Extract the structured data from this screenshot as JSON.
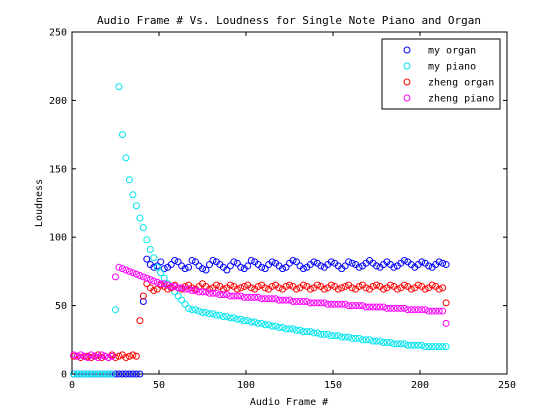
{
  "chart_data": {
    "type": "scatter",
    "title": "Audio Frame # Vs. Loudness for Single Note Piano and Organ",
    "xlabel": "Audio Frame #",
    "ylabel": "Loudness",
    "xlim": [
      0,
      250
    ],
    "ylim": [
      0,
      250
    ],
    "xticks": [
      "0",
      "50",
      "100",
      "150",
      "200",
      "250"
    ],
    "yticks": [
      "0",
      "50",
      "100",
      "150",
      "200",
      "250"
    ],
    "grid": false,
    "legend_position": "top-right",
    "series": [
      {
        "name": "my organ",
        "color": "#0000ff",
        "x": [
          1,
          3,
          5,
          7,
          9,
          11,
          13,
          15,
          17,
          19,
          21,
          23,
          25,
          27,
          29,
          31,
          33,
          35,
          37,
          39,
          41,
          43,
          45,
          47,
          49,
          51,
          53,
          55,
          57,
          59,
          61,
          63,
          65,
          67,
          69,
          71,
          73,
          75,
          77,
          79,
          81,
          83,
          85,
          87,
          89,
          91,
          93,
          95,
          97,
          99,
          101,
          103,
          105,
          107,
          109,
          111,
          113,
          115,
          117,
          119,
          121,
          123,
          125,
          127,
          129,
          131,
          133,
          135,
          137,
          139,
          141,
          143,
          145,
          147,
          149,
          151,
          153,
          155,
          157,
          159,
          161,
          163,
          165,
          167,
          169,
          171,
          173,
          175,
          177,
          179,
          181,
          183,
          185,
          187,
          189,
          191,
          193,
          195,
          197,
          199,
          201,
          203,
          205,
          207,
          209,
          211,
          213,
          215
        ],
        "y": [
          0,
          0,
          0,
          0,
          0,
          0,
          0,
          0,
          0,
          0,
          0,
          0,
          0,
          0,
          0,
          0,
          0,
          0,
          0,
          0,
          53,
          84,
          80,
          78,
          79,
          82,
          77,
          78,
          80,
          83,
          82,
          79,
          77,
          78,
          83,
          82,
          79,
          77,
          76,
          80,
          83,
          82,
          80,
          78,
          76,
          79,
          82,
          81,
          78,
          77,
          79,
          83,
          82,
          80,
          78,
          77,
          80,
          82,
          81,
          79,
          77,
          78,
          81,
          83,
          82,
          79,
          77,
          78,
          80,
          82,
          81,
          79,
          78,
          80,
          82,
          81,
          79,
          77,
          79,
          82,
          81,
          80,
          78,
          79,
          81,
          83,
          81,
          79,
          78,
          80,
          82,
          80,
          78,
          79,
          81,
          83,
          82,
          80,
          78,
          80,
          82,
          81,
          79,
          78,
          80,
          82,
          81,
          80
        ]
      },
      {
        "name": "my piano",
        "color": "#00e5ee",
        "x": [
          1,
          3,
          5,
          7,
          9,
          11,
          13,
          15,
          17,
          19,
          21,
          23,
          25,
          27,
          29,
          31,
          33,
          35,
          37,
          39,
          41,
          43,
          45,
          47,
          49,
          51,
          53,
          55,
          57,
          59,
          61,
          63,
          65,
          67,
          69,
          71,
          73,
          75,
          77,
          79,
          81,
          83,
          85,
          87,
          89,
          91,
          93,
          95,
          97,
          99,
          101,
          103,
          105,
          107,
          109,
          111,
          113,
          115,
          117,
          119,
          121,
          123,
          125,
          127,
          129,
          131,
          133,
          135,
          137,
          139,
          141,
          143,
          145,
          147,
          149,
          151,
          153,
          155,
          157,
          159,
          161,
          163,
          165,
          167,
          169,
          171,
          173,
          175,
          177,
          179,
          181,
          183,
          185,
          187,
          189,
          191,
          193,
          195,
          197,
          199,
          201,
          203,
          205,
          207,
          209,
          211,
          213,
          215
        ],
        "y": [
          0,
          0,
          0,
          0,
          0,
          0,
          0,
          0,
          0,
          0,
          0,
          0,
          47,
          210,
          175,
          158,
          142,
          131,
          123,
          114,
          107,
          98,
          91,
          85,
          78,
          74,
          70,
          66,
          63,
          60,
          57,
          54,
          51,
          48,
          47,
          47,
          46,
          45,
          45,
          44,
          44,
          43,
          43,
          42,
          42,
          41,
          41,
          40,
          40,
          39,
          39,
          38,
          38,
          37,
          37,
          36,
          36,
          35,
          35,
          34,
          34,
          33,
          33,
          33,
          32,
          32,
          31,
          31,
          31,
          30,
          30,
          29,
          29,
          29,
          28,
          28,
          28,
          27,
          27,
          27,
          26,
          26,
          26,
          25,
          25,
          25,
          24,
          24,
          24,
          23,
          23,
          23,
          22,
          22,
          22,
          22,
          21,
          21,
          21,
          21,
          21,
          20,
          20,
          20,
          20,
          20,
          20,
          20
        ]
      },
      {
        "name": "zheng organ",
        "color": "#ff0000",
        "x": [
          1,
          3,
          5,
          7,
          9,
          11,
          13,
          15,
          17,
          19,
          21,
          23,
          25,
          27,
          29,
          31,
          33,
          35,
          37,
          39,
          41,
          43,
          45,
          47,
          49,
          51,
          53,
          55,
          57,
          59,
          61,
          63,
          65,
          67,
          69,
          71,
          73,
          75,
          77,
          79,
          81,
          83,
          85,
          87,
          89,
          91,
          93,
          95,
          97,
          99,
          101,
          103,
          105,
          107,
          109,
          111,
          113,
          115,
          117,
          119,
          121,
          123,
          125,
          127,
          129,
          131,
          133,
          135,
          137,
          139,
          141,
          143,
          145,
          147,
          149,
          151,
          153,
          155,
          157,
          159,
          161,
          163,
          165,
          167,
          169,
          171,
          173,
          175,
          177,
          179,
          181,
          183,
          185,
          187,
          189,
          191,
          193,
          195,
          197,
          199,
          201,
          203,
          205,
          207,
          209,
          211,
          213,
          215
        ],
        "y": [
          13,
          13,
          12,
          13,
          13,
          12,
          13,
          14,
          12,
          13,
          12,
          14,
          12,
          13,
          14,
          12,
          13,
          14,
          13,
          39,
          57,
          66,
          63,
          61,
          62,
          65,
          64,
          62,
          63,
          65,
          63,
          62,
          64,
          65,
          63,
          62,
          64,
          66,
          64,
          62,
          63,
          65,
          64,
          62,
          63,
          65,
          64,
          62,
          63,
          64,
          65,
          63,
          62,
          64,
          65,
          63,
          62,
          64,
          65,
          63,
          62,
          64,
          65,
          64,
          62,
          63,
          65,
          64,
          62,
          63,
          65,
          64,
          62,
          63,
          65,
          64,
          62,
          63,
          64,
          65,
          63,
          62,
          64,
          65,
          63,
          62,
          64,
          65,
          64,
          62,
          63,
          65,
          64,
          62,
          63,
          65,
          64,
          62,
          63,
          65,
          64,
          62,
          63,
          65,
          64,
          62,
          63,
          52
        ]
      },
      {
        "name": "zheng piano",
        "color": "#ff00ff",
        "x": [
          1,
          3,
          5,
          7,
          9,
          11,
          13,
          15,
          17,
          19,
          21,
          23,
          25,
          27,
          29,
          31,
          33,
          35,
          37,
          39,
          41,
          43,
          45,
          47,
          49,
          51,
          53,
          55,
          57,
          59,
          61,
          63,
          65,
          67,
          69,
          71,
          73,
          75,
          77,
          79,
          81,
          83,
          85,
          87,
          89,
          91,
          93,
          95,
          97,
          99,
          101,
          103,
          105,
          107,
          109,
          111,
          113,
          115,
          117,
          119,
          121,
          123,
          125,
          127,
          129,
          131,
          133,
          135,
          137,
          139,
          141,
          143,
          145,
          147,
          149,
          151,
          153,
          155,
          157,
          159,
          161,
          163,
          165,
          167,
          169,
          171,
          173,
          175,
          177,
          179,
          181,
          183,
          185,
          187,
          189,
          191,
          193,
          195,
          197,
          199,
          201,
          203,
          205,
          207,
          209,
          211,
          213,
          215
        ],
        "y": [
          14,
          13,
          14,
          13,
          12,
          14,
          13,
          12,
          14,
          13,
          12,
          13,
          71,
          78,
          77,
          76,
          75,
          74,
          73,
          72,
          71,
          70,
          69,
          68,
          67,
          66,
          66,
          65,
          64,
          64,
          63,
          63,
          62,
          62,
          61,
          61,
          60,
          60,
          60,
          59,
          59,
          59,
          58,
          58,
          58,
          57,
          57,
          57,
          57,
          56,
          56,
          56,
          56,
          56,
          55,
          55,
          55,
          55,
          55,
          54,
          54,
          54,
          54,
          53,
          53,
          53,
          53,
          53,
          52,
          52,
          52,
          52,
          52,
          51,
          51,
          51,
          51,
          51,
          51,
          50,
          50,
          50,
          50,
          50,
          49,
          49,
          49,
          49,
          49,
          49,
          48,
          48,
          48,
          48,
          48,
          48,
          47,
          47,
          47,
          47,
          47,
          47,
          46,
          46,
          46,
          46,
          46,
          37
        ]
      }
    ]
  }
}
